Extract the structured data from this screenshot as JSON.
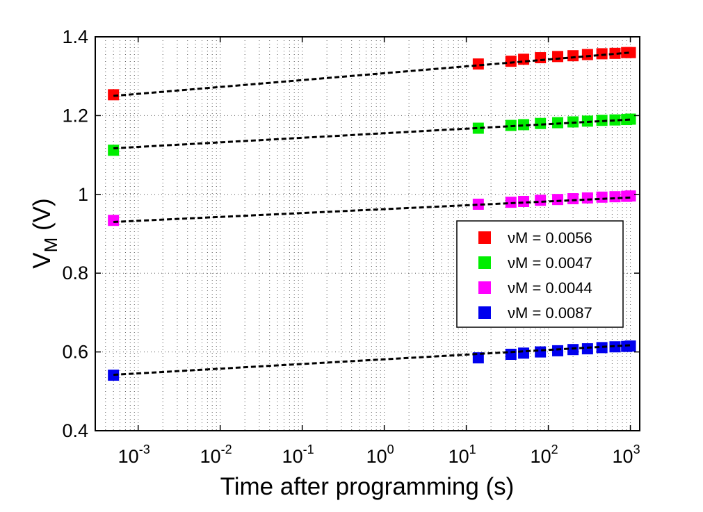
{
  "chart_data": {
    "type": "scatter",
    "title": "",
    "xlabel": "Time after programming (s)",
    "ylabel": "V",
    "ylabel_subscript": "M",
    "ylabel_unit": " (V)",
    "xscale": "log",
    "xlim": [
      0.0003,
      1300
    ],
    "ylim": [
      0.4,
      1.4
    ],
    "grid": true,
    "legend_position": "center-right",
    "x_ticks": [
      {
        "base": "10",
        "exp": "-3",
        "value": 0.001
      },
      {
        "base": "10",
        "exp": "-2",
        "value": 0.01
      },
      {
        "base": "10",
        "exp": "-1",
        "value": 0.1
      },
      {
        "base": "10",
        "exp": "0",
        "value": 1
      },
      {
        "base": "10",
        "exp": "1",
        "value": 10
      },
      {
        "base": "10",
        "exp": "2",
        "value": 100
      },
      {
        "base": "10",
        "exp": "3",
        "value": 1000
      }
    ],
    "y_ticks": [
      {
        "label": "0.4",
        "value": 0.4
      },
      {
        "label": "0.6",
        "value": 0.6
      },
      {
        "label": "0.8",
        "value": 0.8
      },
      {
        "label": "1",
        "value": 1.0
      },
      {
        "label": "1.2",
        "value": 1.2
      },
      {
        "label": "1.4",
        "value": 1.4
      }
    ],
    "series": [
      {
        "name": "νM = 0.0056",
        "color": "#ff0000",
        "x": [
          0.0005,
          14,
          35,
          50,
          80,
          130,
          200,
          300,
          450,
          650,
          900,
          1000
        ],
        "y": [
          1.253,
          1.331,
          1.338,
          1.343,
          1.347,
          1.35,
          1.352,
          1.355,
          1.357,
          1.358,
          1.36,
          1.36
        ],
        "fit": {
          "x": [
            0.0005,
            1000
          ],
          "y": [
            1.25,
            1.36
          ]
        }
      },
      {
        "name": "νM = 0.0047",
        "color": "#00ee00",
        "x": [
          0.0005,
          14,
          35,
          50,
          80,
          130,
          200,
          300,
          450,
          650,
          900,
          1000
        ],
        "y": [
          1.112,
          1.168,
          1.175,
          1.177,
          1.18,
          1.182,
          1.184,
          1.186,
          1.188,
          1.189,
          1.19,
          1.191
        ],
        "fit": {
          "x": [
            0.0005,
            1000
          ],
          "y": [
            1.117,
            1.19
          ]
        }
      },
      {
        "name": "νM = 0.0044",
        "color": "#ff00ff",
        "x": [
          0.0005,
          14,
          35,
          50,
          80,
          130,
          200,
          300,
          450,
          650,
          900,
          1000
        ],
        "y": [
          0.934,
          0.975,
          0.98,
          0.982,
          0.985,
          0.987,
          0.989,
          0.991,
          0.993,
          0.994,
          0.995,
          0.996
        ],
        "fit": {
          "x": [
            0.0005,
            1000
          ],
          "y": [
            0.93,
            0.992
          ]
        }
      },
      {
        "name": "νM = 0.0087",
        "color": "#0000ee",
        "x": [
          0.0005,
          14,
          35,
          50,
          80,
          130,
          200,
          300,
          450,
          650,
          900,
          1000
        ],
        "y": [
          0.541,
          0.585,
          0.594,
          0.597,
          0.6,
          0.603,
          0.606,
          0.608,
          0.611,
          0.613,
          0.614,
          0.615
        ],
        "fit": {
          "x": [
            0.0005,
            1000
          ],
          "y": [
            0.542,
            0.617
          ]
        }
      }
    ]
  }
}
